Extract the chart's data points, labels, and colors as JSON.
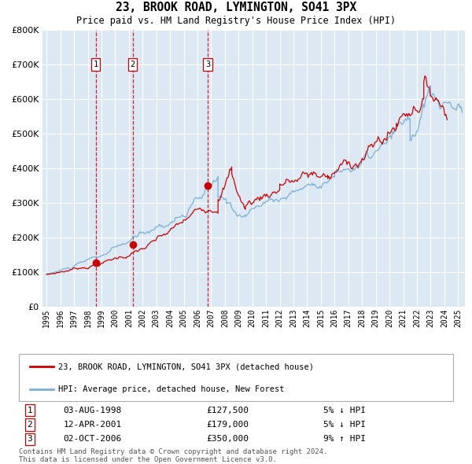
{
  "title": "23, BROOK ROAD, LYMINGTON, SO41 3PX",
  "subtitle": "Price paid vs. HM Land Registry's House Price Index (HPI)",
  "background_color": "#dce9f5",
  "plot_bg_color": "#dce9f5",
  "grid_color": "#ffffff",
  "hpi_color": "#7bafd4",
  "price_color": "#cc0000",
  "marker_color": "#cc0000",
  "dashed_color": "#cc0000",
  "ylim": [
    0,
    800000
  ],
  "yticks": [
    0,
    100000,
    200000,
    300000,
    400000,
    500000,
    600000,
    700000,
    800000
  ],
  "xlim_start": 1994.7,
  "xlim_end": 2025.5,
  "xticks": [
    1995,
    1996,
    1997,
    1998,
    1999,
    2000,
    2001,
    2002,
    2003,
    2004,
    2005,
    2006,
    2007,
    2008,
    2009,
    2010,
    2011,
    2012,
    2013,
    2014,
    2015,
    2016,
    2017,
    2018,
    2019,
    2020,
    2021,
    2022,
    2023,
    2024,
    2025
  ],
  "sale_dates": [
    1998.58,
    2001.27,
    2006.75
  ],
  "sale_prices": [
    127500,
    179000,
    350000
  ],
  "sale_labels": [
    "1",
    "2",
    "3"
  ],
  "legend_price_label": "23, BROOK ROAD, LYMINGTON, SO41 3PX (detached house)",
  "legend_hpi_label": "HPI: Average price, detached house, New Forest",
  "table_data": [
    {
      "num": "1",
      "date": "03-AUG-1998",
      "price": "£127,500",
      "pct": "5% ↓ HPI"
    },
    {
      "num": "2",
      "date": "12-APR-2001",
      "price": "£179,000",
      "pct": "5% ↓ HPI"
    },
    {
      "num": "3",
      "date": "02-OCT-2006",
      "price": "£350,000",
      "pct": "9% ↑ HPI"
    }
  ],
  "footer": "Contains HM Land Registry data © Crown copyright and database right 2024.\nThis data is licensed under the Open Government Licence v3.0."
}
